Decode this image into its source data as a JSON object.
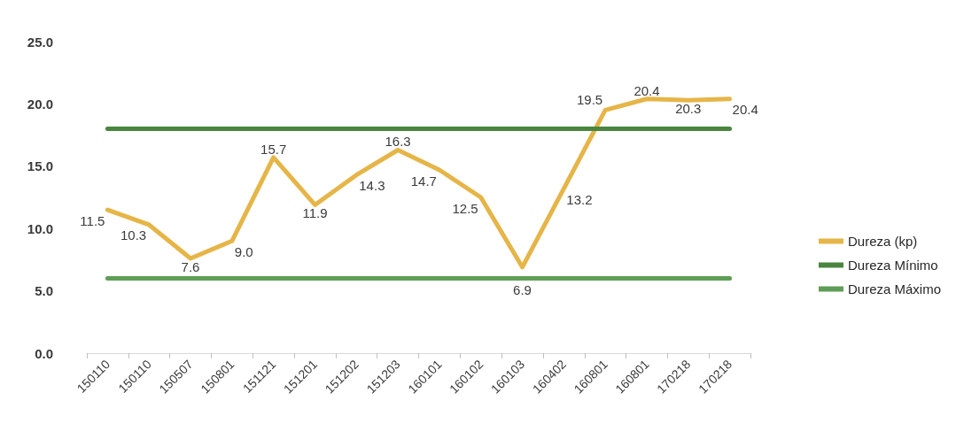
{
  "chart_data": {
    "type": "line",
    "categories": [
      "150110",
      "150110",
      "150507",
      "150801",
      "151121",
      "151201",
      "151202",
      "151203",
      "160101",
      "160102",
      "160103",
      "160402",
      "160801",
      "160801",
      "170218",
      "170218"
    ],
    "series": [
      {
        "name": "Dureza (kp)",
        "color": "#e6b548",
        "values": [
          11.5,
          10.3,
          7.6,
          9.0,
          15.7,
          11.9,
          14.3,
          16.3,
          14.7,
          12.5,
          6.9,
          13.2,
          19.5,
          20.4,
          20.3,
          20.4
        ],
        "value_labels": [
          "11.5",
          "10.3",
          "7.6",
          "9.0",
          "15.7",
          "11.9",
          "14.3",
          "16.3",
          "14.7",
          "12.5",
          "6.9",
          "13.2",
          "19.5",
          "20.4",
          "20.3",
          "20.4"
        ]
      },
      {
        "name": "Dureza Mínimo",
        "color": "#4a8540",
        "values": [
          18,
          18,
          18,
          18,
          18,
          18,
          18,
          18,
          18,
          18,
          18,
          18,
          18,
          18,
          18,
          18
        ]
      },
      {
        "name": "Dureza Máximo",
        "color": "#5e9e57",
        "values": [
          6,
          6,
          6,
          6,
          6,
          6,
          6,
          6,
          6,
          6,
          6,
          6,
          6,
          6,
          6,
          6
        ]
      }
    ],
    "ylim": [
      0,
      25
    ],
    "yticks": [
      {
        "value": 0,
        "label": "0.0"
      },
      {
        "value": 5,
        "label": "5.0"
      },
      {
        "value": 10,
        "label": "10.0"
      },
      {
        "value": 15,
        "label": "15.0"
      },
      {
        "value": 20,
        "label": "20.0"
      },
      {
        "value": 25,
        "label": "25.0"
      }
    ],
    "legend": "right",
    "marker": "none"
  }
}
